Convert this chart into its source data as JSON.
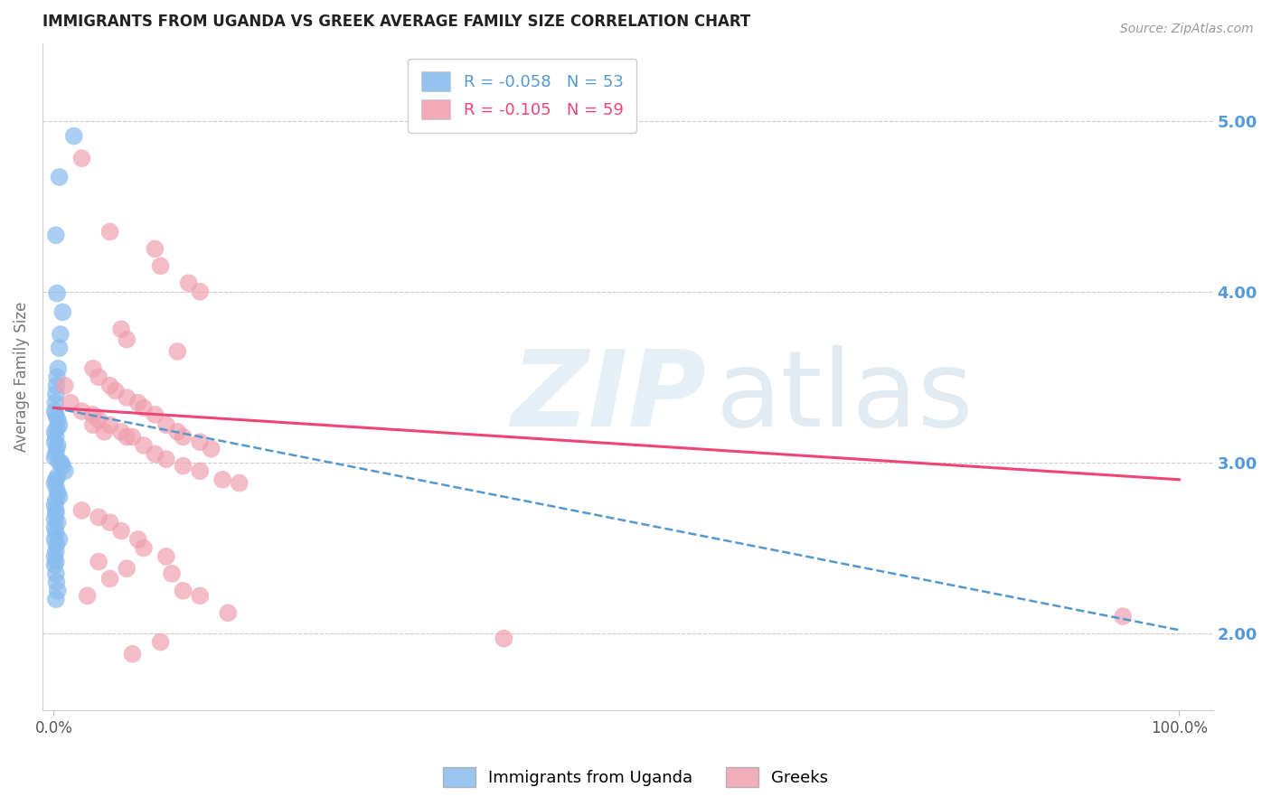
{
  "title": "IMMIGRANTS FROM UGANDA VS GREEK AVERAGE FAMILY SIZE CORRELATION CHART",
  "source": "Source: ZipAtlas.com",
  "ylabel": "Average Family Size",
  "legend_blue_Rval": "-0.058",
  "legend_blue_N": "53",
  "legend_pink_Rval": "-0.105",
  "legend_pink_N": "59",
  "legend_label_blue": "Immigrants from Uganda",
  "legend_label_pink": "Greeks",
  "blue_color": "#88bbee",
  "pink_color": "#f0a0b0",
  "blue_line_color": "#5599cc",
  "pink_line_color": "#ee4477",
  "right_axis_color": "#5599dd",
  "grid_color": "#cccccc",
  "bg_color": "#ffffff",
  "title_color": "#222222",
  "xlim": [
    -1,
    103
  ],
  "ylim": [
    1.55,
    5.45
  ],
  "yticks_right": [
    2.0,
    3.0,
    4.0,
    5.0
  ],
  "blue_scatter_x": [
    0.5,
    1.8,
    0.2,
    0.3,
    0.8,
    0.6,
    0.5,
    0.4,
    0.3,
    0.25,
    0.2,
    0.15,
    0.1,
    0.2,
    0.35,
    0.5,
    0.3,
    0.1,
    0.2,
    0.1,
    0.35,
    0.25,
    0.2,
    0.1,
    0.5,
    0.65,
    0.8,
    1.0,
    0.35,
    0.2,
    0.1,
    0.25,
    0.35,
    0.5,
    0.2,
    0.1,
    0.2,
    0.2,
    0.1,
    0.35,
    0.1,
    0.2,
    0.1,
    0.25,
    0.2,
    0.1,
    0.2,
    0.1,
    0.2,
    0.5,
    0.25,
    0.35,
    0.2
  ],
  "blue_scatter_y": [
    4.67,
    4.91,
    4.33,
    3.99,
    3.88,
    3.75,
    3.67,
    3.55,
    3.5,
    3.45,
    3.4,
    3.35,
    3.3,
    3.28,
    3.25,
    3.22,
    3.2,
    3.18,
    3.15,
    3.12,
    3.1,
    3.08,
    3.05,
    3.03,
    3.0,
    3.0,
    2.98,
    2.95,
    2.92,
    2.9,
    2.88,
    2.85,
    2.82,
    2.8,
    2.78,
    2.75,
    2.72,
    2.7,
    2.67,
    2.65,
    2.62,
    2.59,
    2.55,
    2.52,
    2.48,
    2.45,
    2.42,
    2.4,
    2.35,
    2.55,
    2.3,
    2.25,
    2.2
  ],
  "pink_scatter_x": [
    2.5,
    5.0,
    9.0,
    9.5,
    12.0,
    13.0,
    6.0,
    6.5,
    11.0,
    3.5,
    4.0,
    5.0,
    5.5,
    6.5,
    7.5,
    8.0,
    9.0,
    10.0,
    11.0,
    11.5,
    13.0,
    14.0,
    3.5,
    4.5,
    7.0,
    1.0,
    1.5,
    2.5,
    3.5,
    4.0,
    5.0,
    6.0,
    6.5,
    8.0,
    9.0,
    10.0,
    11.5,
    13.0,
    15.0,
    16.5,
    2.5,
    4.0,
    5.0,
    6.0,
    7.5,
    8.0,
    10.0,
    6.5,
    5.0,
    3.0,
    11.5,
    13.0,
    40.0,
    15.5,
    7.0,
    4.0,
    9.5,
    10.5,
    95.0
  ],
  "pink_scatter_y": [
    4.78,
    4.35,
    4.25,
    4.15,
    4.05,
    4.0,
    3.78,
    3.72,
    3.65,
    3.55,
    3.5,
    3.45,
    3.42,
    3.38,
    3.35,
    3.32,
    3.28,
    3.22,
    3.18,
    3.15,
    3.12,
    3.08,
    3.22,
    3.18,
    3.15,
    3.45,
    3.35,
    3.3,
    3.28,
    3.25,
    3.22,
    3.18,
    3.15,
    3.1,
    3.05,
    3.02,
    2.98,
    2.95,
    2.9,
    2.88,
    2.72,
    2.68,
    2.65,
    2.6,
    2.55,
    2.5,
    2.45,
    2.38,
    2.32,
    2.22,
    2.25,
    2.22,
    1.97,
    2.12,
    1.88,
    2.42,
    1.95,
    2.35,
    2.1
  ],
  "blue_trend_x0": 0,
  "blue_trend_y0": 3.32,
  "blue_trend_x1": 100,
  "blue_trend_y1": 2.02,
  "pink_trend_x0": 0,
  "pink_trend_y0": 3.32,
  "pink_trend_x1": 100,
  "pink_trend_y1": 2.9
}
